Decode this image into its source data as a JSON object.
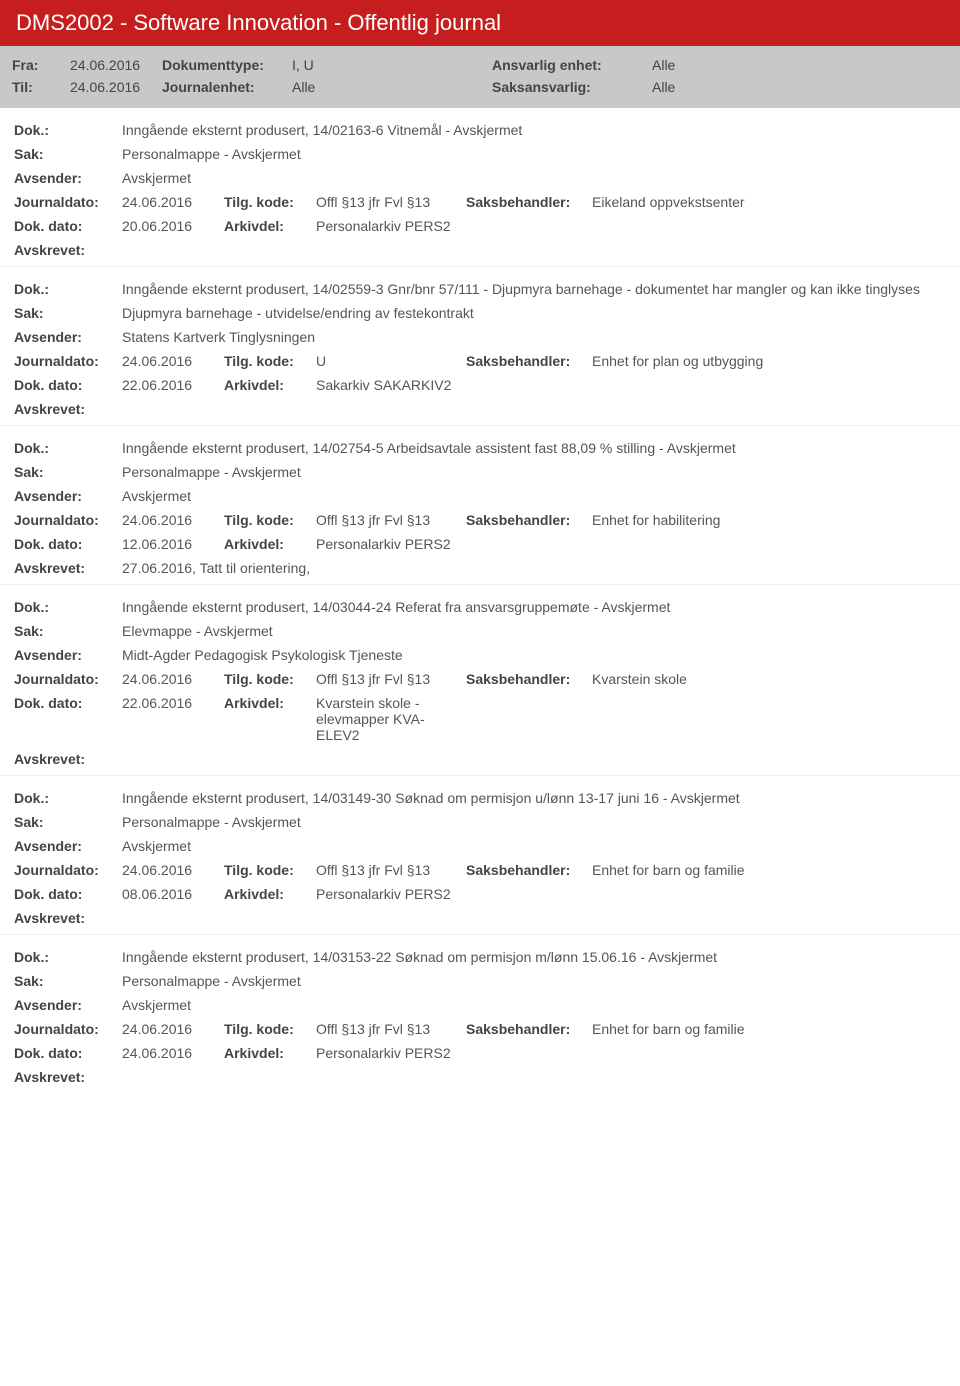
{
  "header": {
    "title": "DMS2002 - Software Innovation - Offentlig journal"
  },
  "filter": {
    "fra_label": "Fra:",
    "fra": "24.06.2016",
    "til_label": "Til:",
    "til": "24.06.2016",
    "doktype_label": "Dokumenttype:",
    "doktype": "I, U",
    "journalenhet_label": "Journalenhet:",
    "journalenhet": "Alle",
    "ansvarlig_label": "Ansvarlig enhet:",
    "ansvarlig": "Alle",
    "saksansvarlig_label": "Saksansvarlig:",
    "saksansvarlig": "Alle"
  },
  "labels": {
    "dok": "Dok.:",
    "sak": "Sak:",
    "avsender": "Avsender:",
    "journaldato": "Journaldato:",
    "tilgkode": "Tilg. kode:",
    "saksbehandler": "Saksbehandler:",
    "dokdato": "Dok. dato:",
    "arkivdel": "Arkivdel:",
    "avskrevet": "Avskrevet:"
  },
  "entries": [
    {
      "dok": "Inngående eksternt produsert, 14/02163-6 Vitnemål - Avskjermet",
      "sak": "Personalmappe - Avskjermet",
      "avsender": "Avskjermet",
      "journaldato": "24.06.2016",
      "tilgkode": "Offl §13 jfr Fvl §13",
      "saksbehandler": "Eikeland oppvekstsenter",
      "dokdato": "20.06.2016",
      "arkivdel": "Personalarkiv PERS2",
      "avskrevet": ""
    },
    {
      "dok": "Inngående eksternt produsert, 14/02559-3 Gnr/bnr 57/111 - Djupmyra barnehage - dokumentet har mangler og kan ikke tinglyses",
      "sak": "Djupmyra barnehage - utvidelse/endring av festekontrakt",
      "avsender": "Statens Kartverk Tinglysningen",
      "journaldato": "24.06.2016",
      "tilgkode": "U",
      "saksbehandler": "Enhet for plan og utbygging",
      "dokdato": "22.06.2016",
      "arkivdel": "Sakarkiv SAKARKIV2",
      "avskrevet": ""
    },
    {
      "dok": "Inngående eksternt produsert, 14/02754-5 Arbeidsavtale assistent fast 88,09 % stilling - Avskjermet",
      "sak": "Personalmappe - Avskjermet",
      "avsender": "Avskjermet",
      "journaldato": "24.06.2016",
      "tilgkode": "Offl §13 jfr Fvl §13",
      "saksbehandler": "Enhet for habilitering",
      "dokdato": "12.06.2016",
      "arkivdel": "Personalarkiv PERS2",
      "avskrevet": "27.06.2016, Tatt til orientering,"
    },
    {
      "dok": "Inngående eksternt produsert, 14/03044-24 Referat fra ansvarsgruppemøte - Avskjermet",
      "sak": "Elevmappe - Avskjermet",
      "avsender": "Midt-Agder Pedagogisk Psykologisk Tjeneste",
      "journaldato": "24.06.2016",
      "tilgkode": "Offl §13 jfr Fvl §13",
      "saksbehandler": "Kvarstein skole",
      "dokdato": "22.06.2016",
      "arkivdel": "Kvarstein skole - elevmapper KVA-ELEV2",
      "avskrevet": ""
    },
    {
      "dok": "Inngående eksternt produsert, 14/03149-30 Søknad om permisjon u/lønn 13-17 juni 16 - Avskjermet",
      "sak": "Personalmappe - Avskjermet",
      "avsender": "Avskjermet",
      "journaldato": "24.06.2016",
      "tilgkode": "Offl §13 jfr Fvl §13",
      "saksbehandler": "Enhet for barn og familie",
      "dokdato": "08.06.2016",
      "arkivdel": "Personalarkiv PERS2",
      "avskrevet": ""
    },
    {
      "dok": "Inngående eksternt produsert, 14/03153-22 Søknad om permisjon m/lønn 15.06.16 - Avskjermet",
      "sak": "Personalmappe - Avskjermet",
      "avsender": "Avskjermet",
      "journaldato": "24.06.2016",
      "tilgkode": "Offl §13 jfr Fvl §13",
      "saksbehandler": "Enhet for barn og familie",
      "dokdato": "24.06.2016",
      "arkivdel": "Personalarkiv PERS2",
      "avskrevet": ""
    }
  ]
}
